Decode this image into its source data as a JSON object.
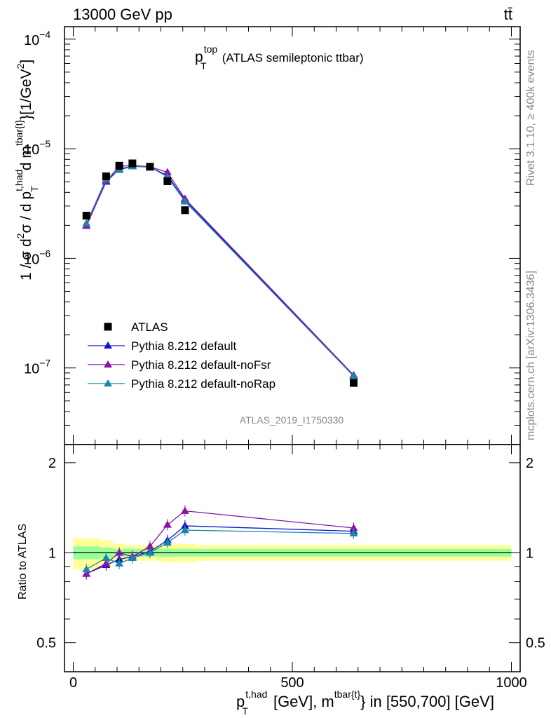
{
  "header": {
    "energy_label": "13000 GeV pp",
    "process_label": "tt̄"
  },
  "side_labels": {
    "rivet": "Rivet 3.1.10, ≥ 400k events",
    "mcplots": "mcplots.cern.ch [arXiv:1306.3436]"
  },
  "main_panel": {
    "title_main": "p",
    "title_sup": "top",
    "title_sub": "T",
    "title_rest": "(ATLAS semileptonic ttbar)",
    "ylabel": "1 / σ d²σ / d p_T^{t,had} d m^{tbar{t}} [1/GeV²]",
    "ylabel_parts": {
      "a": "1 / σ d",
      "b": "2",
      "c": "σ / d p",
      "d": "t,had",
      "e": "T",
      "f": "d m",
      "g": "tbar{t}",
      "h": "}[1/GeV",
      "i": "2",
      "j": "]"
    },
    "watermark": "ATLAS_2019_I1750330",
    "y_tick_labels": [
      {
        "base": "10",
        "exp": "−7",
        "value": 1e-07
      },
      {
        "base": "10",
        "exp": "−6",
        "value": 1e-06
      },
      {
        "base": "10",
        "exp": "−5",
        "value": 1e-05
      },
      {
        "base": "10",
        "exp": "−4",
        "value": 0.0001
      }
    ]
  },
  "ratio_panel": {
    "ylabel": "Ratio to ATLAS",
    "y_tick_labels": [
      "0.5",
      "1",
      "2"
    ]
  },
  "x_axis": {
    "label_p": "p",
    "label_sup1": "t,had",
    "label_sub": "T",
    "label_mid": "[GeV], m",
    "label_sup2": "tbar{t}",
    "label_end": "} in [550,700] [GeV]",
    "tick_labels": [
      "0",
      "500",
      "1000"
    ]
  },
  "legend": [
    {
      "label": "ATLAS",
      "color": "#000000",
      "marker": "square"
    },
    {
      "label": "Pythia 8.212 default",
      "color": "#1515c8",
      "marker": "triangle"
    },
    {
      "label": "Pythia 8.212 default-noFsr",
      "color": "#8a12a6",
      "marker": "triangle"
    },
    {
      "label": "Pythia 8.212 default-noRap",
      "color": "#1686aa",
      "marker": "triangle"
    }
  ],
  "chart_data": {
    "type": "scatter",
    "title": "p_T^top (ATLAS semileptonic ttbar)",
    "xlabel": "p_T^{t,had} [GeV], m^{tbar{t}} in [550,700] [GeV]",
    "ylabel": "1 / σ d²σ / d p_T^{t,had} d m^{tbar{t}} [1/GeV²]",
    "xlim": [
      -20,
      1020
    ],
    "ylim": [
      2e-08,
      0.00013
    ],
    "yscale": "log",
    "ratio_ylim": [
      0.4,
      2.3
    ],
    "ratio_yscale": "log",
    "x": [
      30,
      75,
      105,
      135,
      175,
      215,
      255,
      640
    ],
    "bin_edges": [
      0,
      60,
      90,
      120,
      150,
      200,
      240,
      280,
      1000
    ],
    "series": [
      {
        "name": "ATLAS",
        "color": "#000000",
        "values": [
          2.45e-06,
          5.6e-06,
          7e-06,
          7.35e-06,
          6.85e-06,
          5.05e-06,
          2.75e-06,
          7.3e-08
        ],
        "ratio": [
          1,
          1,
          1,
          1,
          1,
          1,
          1,
          1
        ]
      },
      {
        "name": "Pythia 8.212 default",
        "color": "#1515c8",
        "values": [
          1.98e-06,
          5e-06,
          6.5e-06,
          6.95e-06,
          6.8e-06,
          5.7e-06,
          3.4e-06,
          8.5e-08
        ],
        "ratio": [
          0.85,
          0.91,
          0.95,
          0.97,
          1.01,
          1.1,
          1.23,
          1.18
        ]
      },
      {
        "name": "Pythia 8.212 default-noFsr",
        "color": "#8a12a6",
        "values": [
          1.98e-06,
          5.1e-06,
          6.9e-06,
          7.05e-06,
          6.85e-06,
          6.1e-06,
          3.5e-06,
          8.6e-08
        ],
        "ratio": [
          0.85,
          0.92,
          1.0,
          0.97,
          1.05,
          1.24,
          1.38,
          1.21
        ]
      },
      {
        "name": "Pythia 8.212 default-noRap",
        "color": "#1686aa",
        "values": [
          2.08e-06,
          5.3e-06,
          6.4e-06,
          6.9e-06,
          6.8e-06,
          5.55e-06,
          3.3e-06,
          8.4e-08
        ],
        "ratio": [
          0.88,
          0.96,
          0.92,
          0.96,
          1.0,
          1.08,
          1.19,
          1.16
        ]
      }
    ],
    "atlas_band_inner": [
      0.05,
      0.04,
      0.03,
      0.03,
      0.03,
      0.03,
      0.03,
      0.03
    ],
    "atlas_band_outer": [
      0.12,
      0.1,
      0.07,
      0.06,
      0.06,
      0.07,
      0.07,
      0.06
    ]
  }
}
